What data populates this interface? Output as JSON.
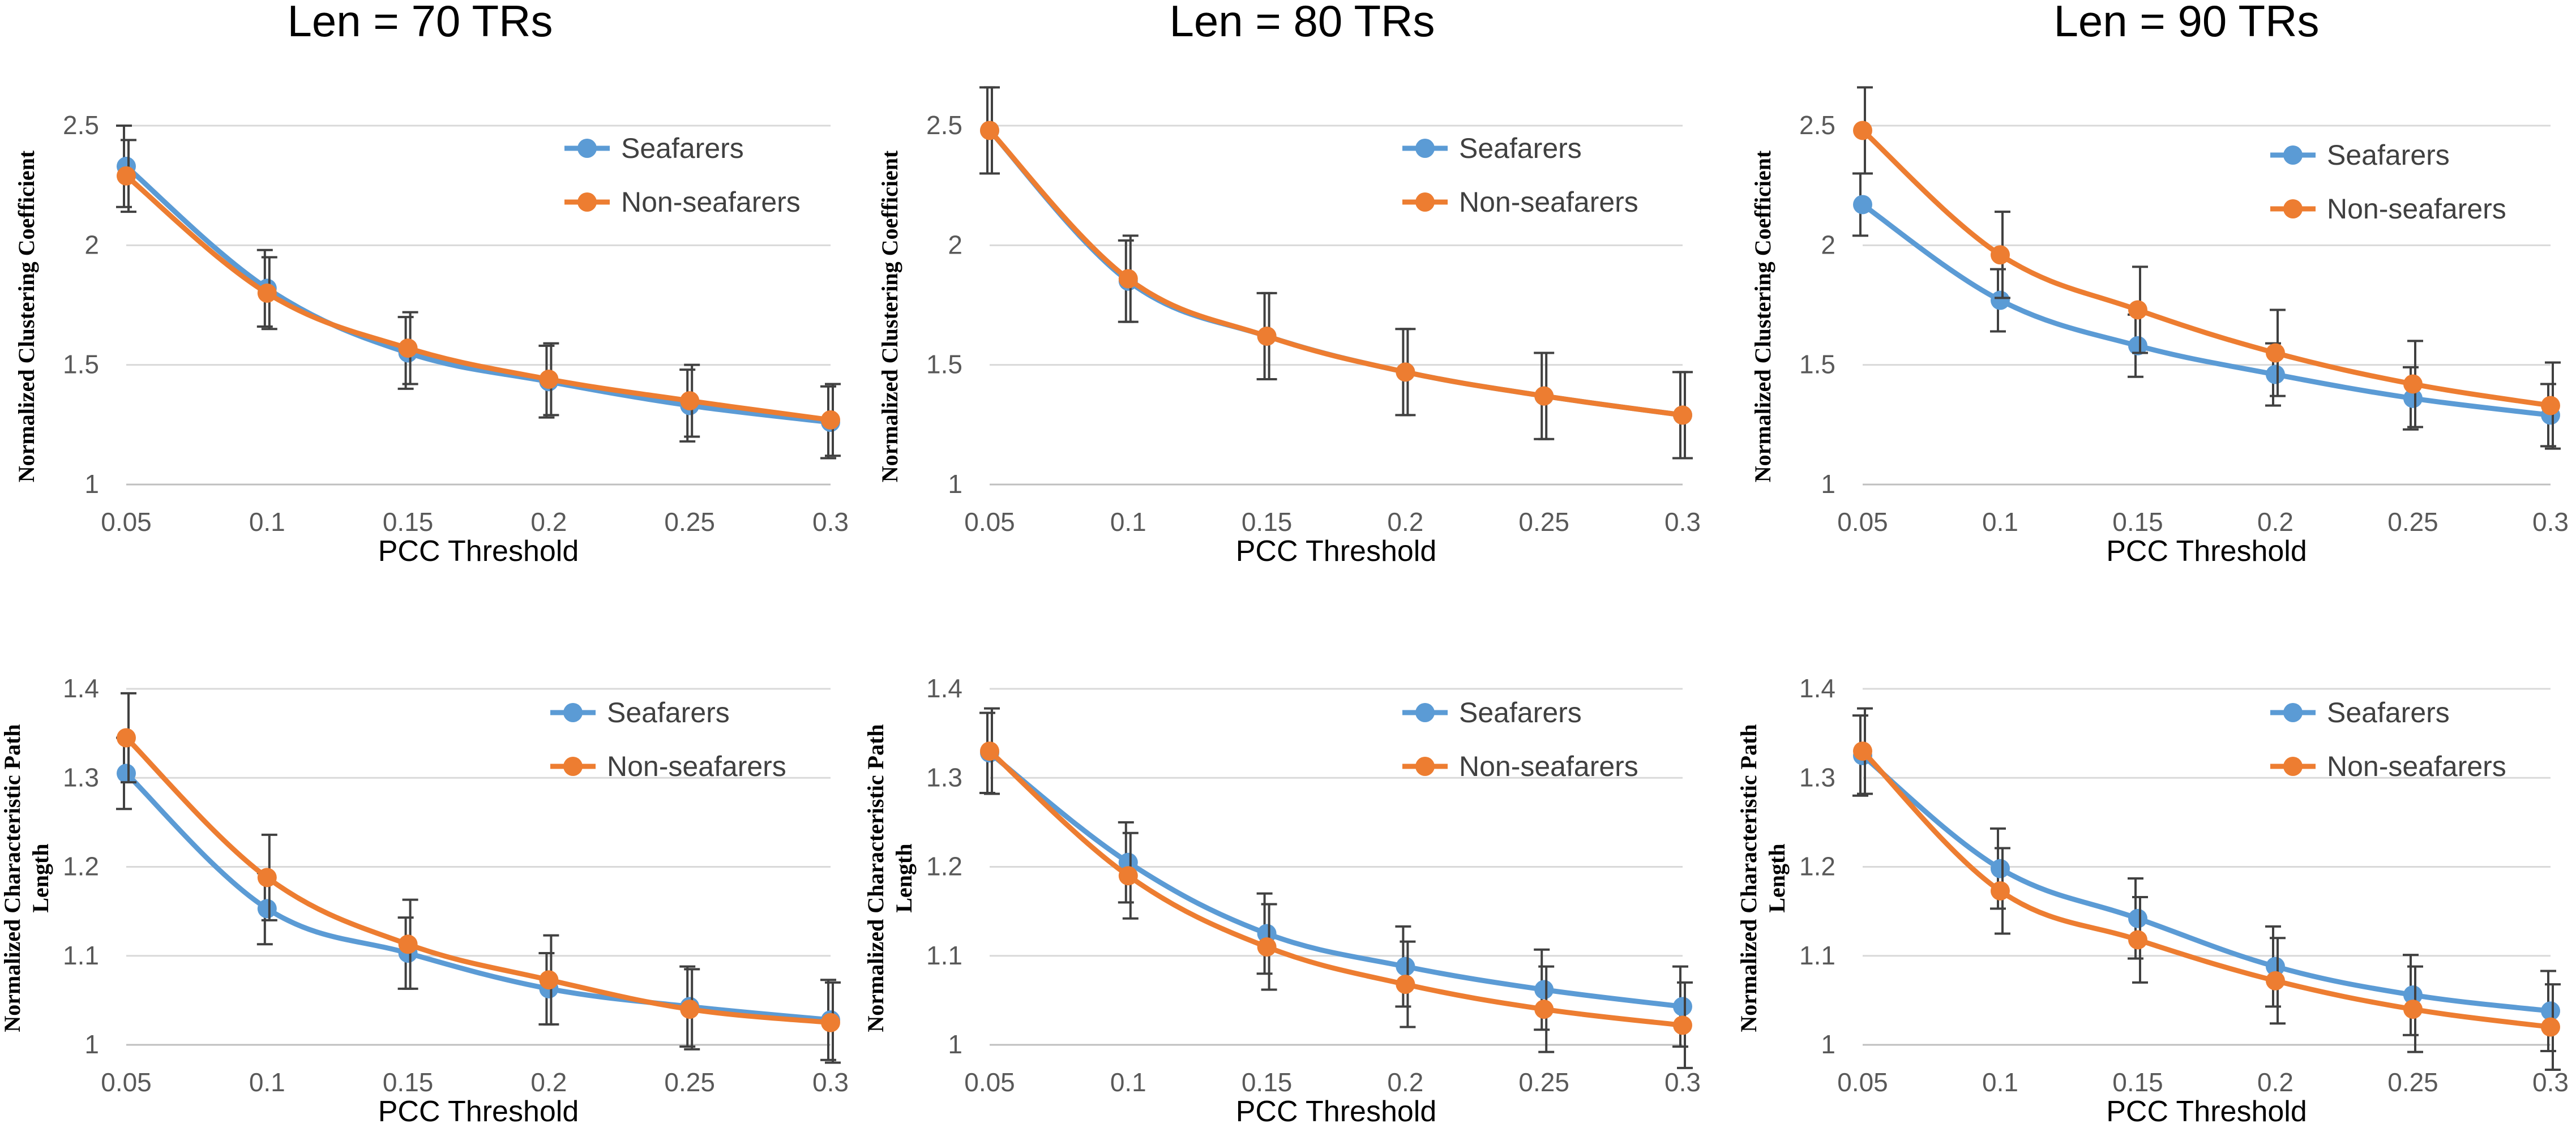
{
  "colors": {
    "seafarers": "#5b9bd5",
    "non_seafarers": "#ed7d31"
  },
  "column_titles": [
    "Len = 70 TRs",
    "Len = 80 TRs",
    "Len = 90 TRs"
  ],
  "chart_data": [
    {
      "type": "line",
      "panel": "top-left",
      "x": [
        0.05,
        0.1,
        0.15,
        0.2,
        0.25,
        0.3
      ],
      "x_ticks": [
        "0.05",
        "0.1",
        "0.15",
        "0.2",
        "0.25",
        "0.3"
      ],
      "xlabel": "PCC Threshold",
      "ylabel": [
        "Normalized Clustering Coefficient"
      ],
      "ylim": [
        1,
        2.5
      ],
      "y_ticks": [
        "1",
        "1.5",
        "2",
        "2.5"
      ],
      "y_tick_values": [
        1,
        1.5,
        2,
        2.5
      ],
      "legend_position": "top-right",
      "series": [
        {
          "name": "Seafarers",
          "values": [
            2.33,
            1.82,
            1.55,
            1.43,
            1.33,
            1.26
          ],
          "errors": [
            0.17,
            0.16,
            0.15,
            0.15,
            0.15,
            0.15
          ]
        },
        {
          "name": "Non-seafarers",
          "values": [
            2.29,
            1.8,
            1.57,
            1.44,
            1.35,
            1.27
          ],
          "errors": [
            0.15,
            0.15,
            0.15,
            0.15,
            0.15,
            0.15
          ]
        }
      ]
    },
    {
      "type": "line",
      "panel": "top-middle",
      "x": [
        0.05,
        0.1,
        0.15,
        0.2,
        0.25,
        0.3
      ],
      "x_ticks": [
        "0.05",
        "0.1",
        "0.15",
        "0.2",
        "0.25",
        "0.3"
      ],
      "xlabel": "PCC Threshold",
      "ylabel": [
        "Normalized Clustering Coefficient"
      ],
      "ylim": [
        1,
        2.5
      ],
      "y_ticks": [
        "1",
        "1.5",
        "2",
        "2.5"
      ],
      "y_tick_values": [
        1,
        1.5,
        2,
        2.5
      ],
      "legend_position": "top-right",
      "series": [
        {
          "name": "Seafarers",
          "values": [
            2.48,
            1.85,
            1.62,
            1.47,
            1.37,
            1.29
          ],
          "errors": [
            0.18,
            0.17,
            0.18,
            0.18,
            0.18,
            0.18
          ]
        },
        {
          "name": "Non-seafarers",
          "values": [
            2.48,
            1.86,
            1.62,
            1.47,
            1.37,
            1.29
          ],
          "errors": [
            0.18,
            0.18,
            0.18,
            0.18,
            0.18,
            0.18
          ]
        }
      ]
    },
    {
      "type": "line",
      "panel": "top-right",
      "x": [
        0.05,
        0.1,
        0.15,
        0.2,
        0.25,
        0.3
      ],
      "x_ticks": [
        "0.05",
        "0.1",
        "0.15",
        "0.2",
        "0.25",
        "0.3"
      ],
      "xlabel": "PCC Threshold",
      "ylabel": [
        "Normalized Clustering Coefficient"
      ],
      "ylim": [
        1,
        2.5
      ],
      "y_ticks": [
        "1",
        "1.5",
        "2",
        "2.5"
      ],
      "y_tick_values": [
        1,
        1.5,
        2,
        2.5
      ],
      "legend_position": "top-right",
      "series": [
        {
          "name": "Seafarers",
          "values": [
            2.17,
            1.77,
            1.58,
            1.46,
            1.36,
            1.29
          ],
          "errors": [
            0.13,
            0.13,
            0.13,
            0.13,
            0.13,
            0.13
          ]
        },
        {
          "name": "Non-seafarers",
          "values": [
            2.48,
            1.96,
            1.73,
            1.55,
            1.42,
            1.33
          ],
          "errors": [
            0.18,
            0.18,
            0.18,
            0.18,
            0.18,
            0.18
          ]
        }
      ]
    },
    {
      "type": "line",
      "panel": "bottom-left",
      "x": [
        0.05,
        0.1,
        0.15,
        0.2,
        0.25,
        0.3
      ],
      "x_ticks": [
        "0.05",
        "0.1",
        "0.15",
        "0.2",
        "0.25",
        "0.3"
      ],
      "xlabel": "PCC Threshold",
      "ylabel": [
        "Normalized Characteristic Path",
        "Length"
      ],
      "ylim": [
        1,
        1.4
      ],
      "y_ticks": [
        "1",
        "1.1",
        "1.2",
        "1.3",
        "1.4"
      ],
      "y_tick_values": [
        1,
        1.1,
        1.2,
        1.3,
        1.4
      ],
      "legend_position": "top-right",
      "series": [
        {
          "name": "Seafarers",
          "values": [
            1.305,
            1.153,
            1.103,
            1.063,
            1.043,
            1.028
          ],
          "errors": [
            0.04,
            0.04,
            0.04,
            0.04,
            0.045,
            0.045
          ]
        },
        {
          "name": "Non-seafarers",
          "values": [
            1.345,
            1.188,
            1.113,
            1.073,
            1.04,
            1.025
          ],
          "errors": [
            0.05,
            0.048,
            0.05,
            0.05,
            0.045,
            0.045
          ]
        }
      ]
    },
    {
      "type": "line",
      "panel": "bottom-middle",
      "x": [
        0.05,
        0.1,
        0.15,
        0.2,
        0.25,
        0.3
      ],
      "x_ticks": [
        "0.05",
        "0.1",
        "0.15",
        "0.2",
        "0.25",
        "0.3"
      ],
      "xlabel": "PCC Threshold",
      "ylabel": [
        "Normalized Characteristic Path",
        "Length"
      ],
      "ylim": [
        1,
        1.4
      ],
      "y_ticks": [
        "1",
        "1.1",
        "1.2",
        "1.3",
        "1.4"
      ],
      "y_tick_values": [
        1,
        1.1,
        1.2,
        1.3,
        1.4
      ],
      "legend_position": "top-right",
      "series": [
        {
          "name": "Seafarers",
          "values": [
            1.328,
            1.205,
            1.125,
            1.088,
            1.062,
            1.043
          ],
          "errors": [
            0.045,
            0.045,
            0.045,
            0.045,
            0.045,
            0.045
          ]
        },
        {
          "name": "Non-seafarers",
          "values": [
            1.33,
            1.19,
            1.11,
            1.068,
            1.04,
            1.022
          ],
          "errors": [
            0.048,
            0.048,
            0.048,
            0.048,
            0.048,
            0.048
          ]
        }
      ]
    },
    {
      "type": "line",
      "panel": "bottom-right",
      "x": [
        0.05,
        0.1,
        0.15,
        0.2,
        0.25,
        0.3
      ],
      "x_ticks": [
        "0.05",
        "0.1",
        "0.15",
        "0.2",
        "0.25",
        "0.3"
      ],
      "xlabel": "PCC Threshold",
      "ylabel": [
        "Normalized Characteristic Path",
        "Length"
      ],
      "ylim": [
        1,
        1.4
      ],
      "y_ticks": [
        "1",
        "1.1",
        "1.2",
        "1.3",
        "1.4"
      ],
      "y_tick_values": [
        1,
        1.1,
        1.2,
        1.3,
        1.4
      ],
      "legend_position": "top-right",
      "series": [
        {
          "name": "Seafarers",
          "values": [
            1.325,
            1.198,
            1.142,
            1.088,
            1.056,
            1.038
          ],
          "errors": [
            0.045,
            0.045,
            0.045,
            0.045,
            0.045,
            0.045
          ]
        },
        {
          "name": "Non-seafarers",
          "values": [
            1.33,
            1.173,
            1.118,
            1.072,
            1.04,
            1.02
          ],
          "errors": [
            0.048,
            0.048,
            0.048,
            0.048,
            0.048,
            0.048
          ]
        }
      ]
    }
  ]
}
